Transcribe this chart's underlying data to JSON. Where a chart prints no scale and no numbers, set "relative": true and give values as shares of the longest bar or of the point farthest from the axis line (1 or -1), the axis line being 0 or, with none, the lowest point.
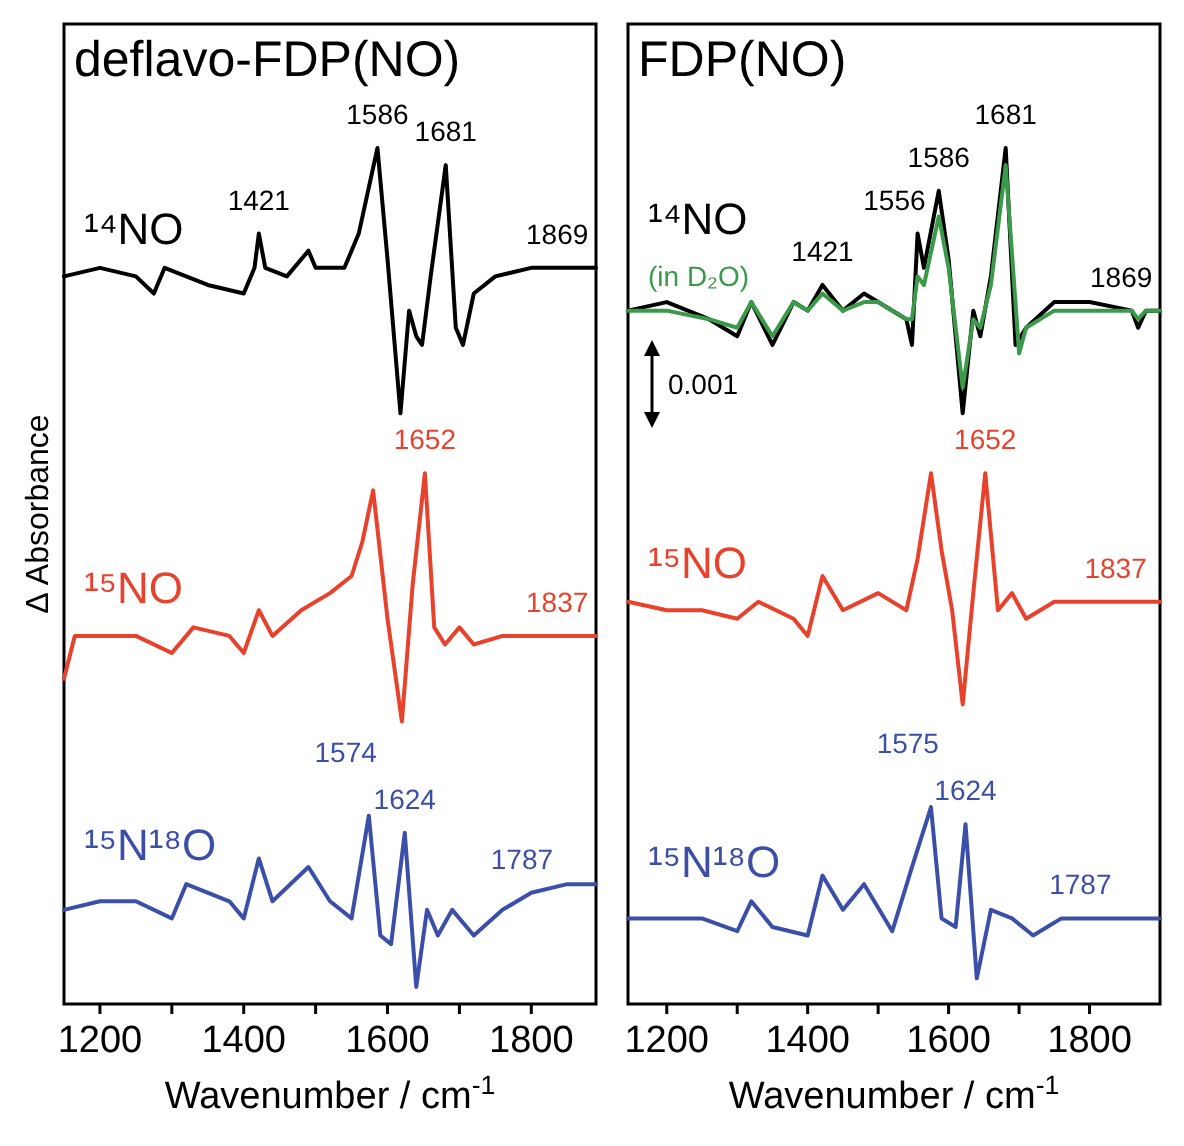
{
  "chart_data": [
    {
      "type": "line",
      "title": "deflavo-FDP(NO)",
      "xlabel": "Wavenumber / cm$^{-1}$",
      "ylabel": "Δ Absorbance",
      "relative": true,
      "xlim": [
        1150,
        1890
      ],
      "xticks": [
        1200,
        {
          "value": 1300,
          "label": null
        },
        1400,
        {
          "value": 1500,
          "label": null
        },
        1600,
        {
          "value": 1700,
          "label": null
        },
        1800
      ],
      "tick_labels": "x",
      "series": [
        {
          "name": "¹⁴NO",
          "color": "#000000",
          "x": [
            1150,
            1200,
            1250,
            1275,
            1290,
            1320,
            1350,
            1400,
            1415,
            1421,
            1430,
            1460,
            1490,
            1500,
            1540,
            1560,
            1586,
            1600,
            1618,
            1630,
            1640,
            1648,
            1660,
            1681,
            1695,
            1705,
            1720,
            1750,
            1800,
            1850,
            1890
          ],
          "values": [
            0.85,
            0.86,
            0.85,
            0.83,
            0.86,
            0.85,
            0.84,
            0.83,
            0.86,
            0.9,
            0.86,
            0.85,
            0.88,
            0.86,
            0.86,
            0.9,
            1.0,
            0.87,
            0.69,
            0.81,
            0.78,
            0.77,
            0.85,
            0.98,
            0.79,
            0.77,
            0.83,
            0.85,
            0.86,
            0.86,
            0.86
          ]
        },
        {
          "name": "¹⁵NO",
          "color": "#e8412c",
          "x": [
            1150,
            1165,
            1200,
            1250,
            1300,
            1330,
            1380,
            1400,
            1421,
            1440,
            1480,
            1520,
            1550,
            1565,
            1580,
            1600,
            1620,
            1635,
            1652,
            1665,
            1680,
            1700,
            1720,
            1760,
            1800,
            1890
          ],
          "values": [
            0.38,
            0.43,
            0.43,
            0.43,
            0.41,
            0.44,
            0.43,
            0.41,
            0.46,
            0.43,
            0.46,
            0.48,
            0.5,
            0.54,
            0.6,
            0.45,
            0.33,
            0.49,
            0.62,
            0.44,
            0.42,
            0.44,
            0.42,
            0.43,
            0.43,
            0.43
          ]
        },
        {
          "name": "¹⁵N¹⁸O",
          "color": "#3c4fa8",
          "x": [
            1150,
            1200,
            1250,
            1300,
            1320,
            1380,
            1400,
            1421,
            1440,
            1490,
            1520,
            1550,
            1574,
            1590,
            1605,
            1624,
            1640,
            1655,
            1670,
            1690,
            1720,
            1760,
            1800,
            1850,
            1890
          ],
          "values": [
            0.11,
            0.12,
            0.12,
            0.1,
            0.14,
            0.12,
            0.1,
            0.17,
            0.12,
            0.16,
            0.12,
            0.1,
            0.22,
            0.08,
            0.07,
            0.2,
            0.02,
            0.11,
            0.08,
            0.11,
            0.08,
            0.11,
            0.13,
            0.14,
            0.14
          ]
        }
      ],
      "annotations": [
        {
          "text": "1421",
          "x": 1421,
          "y": 0.9
        },
        {
          "text": "1586",
          "x": 1586,
          "y": 1.0
        },
        {
          "text": "1681",
          "x": 1681,
          "y": 0.98
        },
        {
          "text": "1869",
          "x": 1869,
          "y": 0.86
        },
        {
          "text": "1652",
          "x": 1652,
          "y": 0.62
        },
        {
          "text": "1837",
          "x": 1837,
          "y": 0.43
        },
        {
          "text": "1574",
          "x": 1574,
          "y": 0.22
        },
        {
          "text": "1624",
          "x": 1624,
          "y": 0.2
        },
        {
          "text": "1787",
          "x": 1787,
          "y": 0.13
        }
      ]
    },
    {
      "type": "line",
      "title": "FDP(NO)",
      "xlabel": "Wavenumber / cm$^{-1}$",
      "relative": true,
      "xlim": [
        1145,
        1900
      ],
      "xticks": [
        1200,
        {
          "value": 1300,
          "label": null
        },
        1400,
        {
          "value": 1500,
          "label": null
        },
        1600,
        {
          "value": 1700,
          "label": null
        },
        1800
      ],
      "tick_labels": "x",
      "series": [
        {
          "name": "¹⁴NO",
          "color": "#000000",
          "x": [
            1145,
            1200,
            1260,
            1300,
            1320,
            1350,
            1380,
            1400,
            1421,
            1450,
            1480,
            1500,
            1540,
            1548,
            1556,
            1565,
            1586,
            1600,
            1620,
            1635,
            1645,
            1660,
            1681,
            1695,
            1710,
            1750,
            1800,
            1860,
            1869,
            1880,
            1900
          ],
          "values": [
            0.81,
            0.82,
            0.8,
            0.78,
            0.82,
            0.77,
            0.82,
            0.81,
            0.84,
            0.81,
            0.83,
            0.82,
            0.8,
            0.77,
            0.9,
            0.86,
            0.95,
            0.87,
            0.69,
            0.81,
            0.78,
            0.85,
            1.0,
            0.77,
            0.79,
            0.82,
            0.82,
            0.81,
            0.79,
            0.81,
            0.81
          ]
        },
        {
          "name": "(in D₂O)",
          "color": "#3a9a4a",
          "x": [
            1145,
            1200,
            1260,
            1300,
            1320,
            1350,
            1380,
            1400,
            1421,
            1450,
            1480,
            1500,
            1540,
            1548,
            1556,
            1565,
            1586,
            1600,
            1620,
            1635,
            1645,
            1660,
            1681,
            1700,
            1710,
            1750,
            1800,
            1860,
            1869,
            1880,
            1900
          ],
          "values": [
            0.81,
            0.81,
            0.8,
            0.79,
            0.82,
            0.78,
            0.82,
            0.81,
            0.83,
            0.81,
            0.82,
            0.82,
            0.8,
            0.8,
            0.85,
            0.84,
            0.92,
            0.86,
            0.72,
            0.8,
            0.79,
            0.84,
            0.98,
            0.76,
            0.79,
            0.81,
            0.81,
            0.81,
            0.8,
            0.81,
            0.81
          ]
        },
        {
          "name": "¹⁵NO",
          "color": "#e8412c",
          "x": [
            1145,
            1200,
            1250,
            1300,
            1330,
            1380,
            1400,
            1421,
            1450,
            1500,
            1540,
            1556,
            1575,
            1590,
            1605,
            1620,
            1635,
            1652,
            1670,
            1690,
            1710,
            1750,
            1900
          ],
          "values": [
            0.47,
            0.46,
            0.46,
            0.45,
            0.47,
            0.45,
            0.43,
            0.5,
            0.46,
            0.48,
            0.46,
            0.52,
            0.62,
            0.53,
            0.46,
            0.35,
            0.48,
            0.62,
            0.46,
            0.48,
            0.45,
            0.47,
            0.47
          ]
        },
        {
          "name": "¹⁵N¹⁸O",
          "color": "#3c4fa8",
          "x": [
            1145,
            1200,
            1250,
            1300,
            1320,
            1350,
            1400,
            1421,
            1450,
            1480,
            1520,
            1548,
            1575,
            1590,
            1610,
            1624,
            1640,
            1660,
            1690,
            1720,
            1760,
            1900
          ],
          "values": [
            0.1,
            0.1,
            0.1,
            0.085,
            0.12,
            0.09,
            0.08,
            0.15,
            0.11,
            0.14,
            0.085,
            0.16,
            0.23,
            0.1,
            0.09,
            0.21,
            0.03,
            0.11,
            0.1,
            0.08,
            0.1,
            0.1
          ]
        }
      ],
      "annotations": [
        "0.001",
        {
          "text": "1421",
          "x": 1421,
          "y": 0.84
        },
        {
          "text": "1556",
          "x": 1556,
          "y": 0.9
        },
        {
          "text": "1586",
          "x": 1586,
          "y": 0.95
        },
        {
          "text": "1681",
          "x": 1681,
          "y": 1.0
        },
        {
          "text": "1869",
          "x": 1869,
          "y": 0.81
        },
        {
          "text": "1652",
          "x": 1652,
          "y": 0.62
        },
        {
          "text": "1837",
          "x": 1837,
          "y": 0.47
        },
        {
          "text": "1575",
          "x": 1575,
          "y": 0.23
        },
        {
          "text": "1624",
          "x": 1624,
          "y": 0.21
        },
        {
          "text": "1787",
          "x": 1787,
          "y": 0.1
        }
      ]
    }
  ]
}
